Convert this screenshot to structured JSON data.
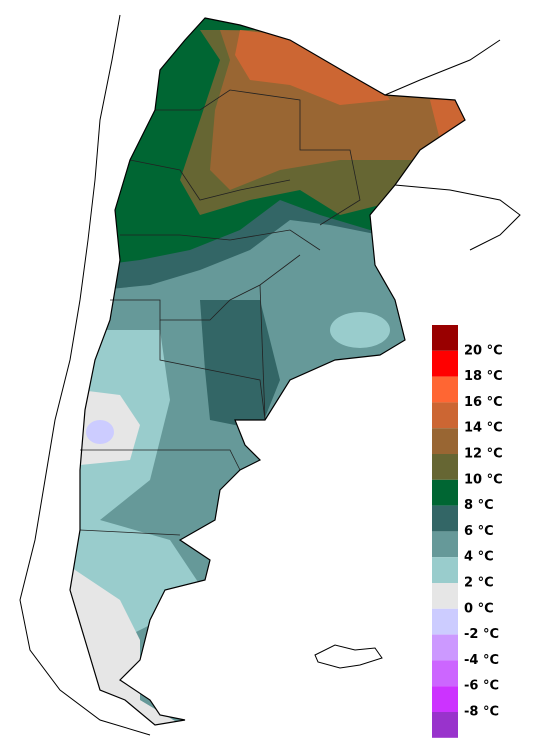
{
  "legend": {
    "colors": [
      "#990000",
      "#ff0000",
      "#ff6633",
      "#cc6633",
      "#996633",
      "#666633",
      "#006633",
      "#336666",
      "#669999",
      "#99cccc",
      "#e6e6e6",
      "#ccccff",
      "#cc99ff",
      "#cc66ff",
      "#cc33ff",
      "#9933cc"
    ],
    "labels": [
      "20 °C",
      "18 °C",
      "16 °C",
      "14 °C",
      "12 °C",
      "10 °C",
      "8 °C",
      "6 °C",
      "4 °C",
      "2 °C",
      "0 °C",
      "-2 °C",
      "-4 °C",
      "-6 °C",
      "-8 °C"
    ]
  }
}
